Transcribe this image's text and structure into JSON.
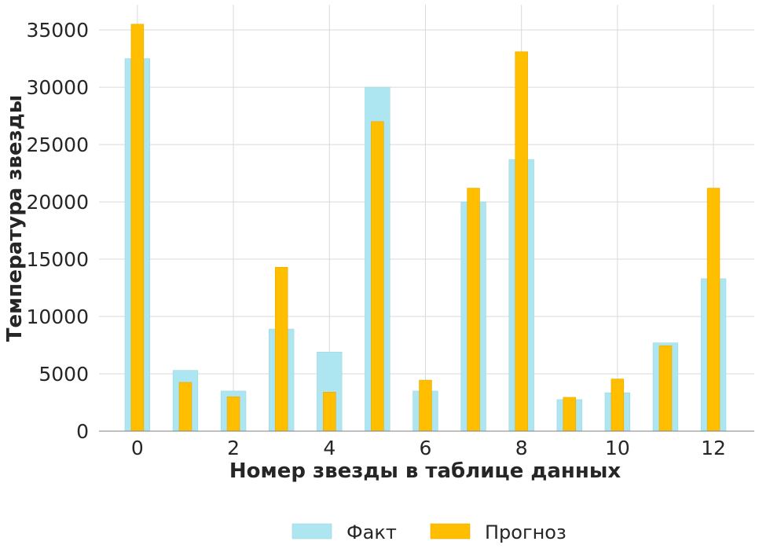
{
  "chart_data": {
    "type": "bar",
    "xlabel": "Номер звезды в таблице данных",
    "ylabel": "Температура звезды",
    "x": [
      0,
      1,
      2,
      3,
      4,
      5,
      6,
      7,
      8,
      9,
      10,
      11,
      12
    ],
    "xticks": [
      0,
      2,
      4,
      6,
      8,
      10,
      12
    ],
    "xlim": [
      -0.8,
      12.85
    ],
    "yticks": [
      0,
      5000,
      10000,
      15000,
      20000,
      25000,
      30000,
      35000
    ],
    "ylim": [
      0,
      37200
    ],
    "grid": true,
    "legend_position": "bottom-center",
    "series": [
      {
        "name": "Факт",
        "color": "#ade5f0",
        "values": [
          32500,
          5300,
          3500,
          8900,
          6900,
          30000,
          3500,
          20000,
          23700,
          2750,
          3350,
          7700,
          13300
        ]
      },
      {
        "name": "Прогноз",
        "color": "#ffbe00",
        "values": [
          35500,
          4250,
          3000,
          14300,
          3400,
          27000,
          4450,
          21200,
          33100,
          2950,
          4550,
          7450,
          21200
        ]
      }
    ]
  }
}
